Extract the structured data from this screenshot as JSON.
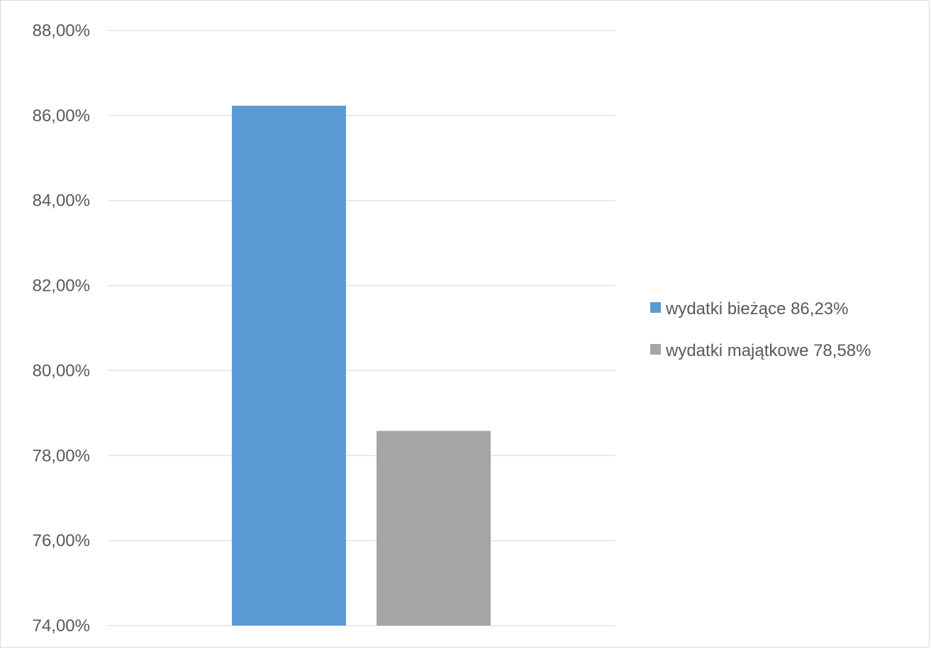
{
  "chart_data": {
    "type": "bar",
    "categories": [
      "wydatki bieżące 86,23%",
      "wydatki majątkowe 78,58%"
    ],
    "values": [
      86.23,
      78.58
    ],
    "colors": [
      "#5b9bd5",
      "#a5a5a5"
    ],
    "title": "",
    "xlabel": "",
    "ylabel": "",
    "ylim": [
      74,
      88
    ],
    "yticks": [
      74,
      76,
      78,
      80,
      82,
      84,
      86,
      88
    ],
    "ytick_labels": [
      "74,00%",
      "76,00%",
      "78,00%",
      "80,00%",
      "82,00%",
      "84,00%",
      "86,00%",
      "88,00%"
    ],
    "grid": true,
    "legend": {
      "position": "right",
      "entries": [
        {
          "label": "wydatki bieżące 86,23%",
          "color": "#5b9bd5"
        },
        {
          "label": "wydatki majątkowe 78,58%",
          "color": "#a5a5a5"
        }
      ]
    }
  }
}
